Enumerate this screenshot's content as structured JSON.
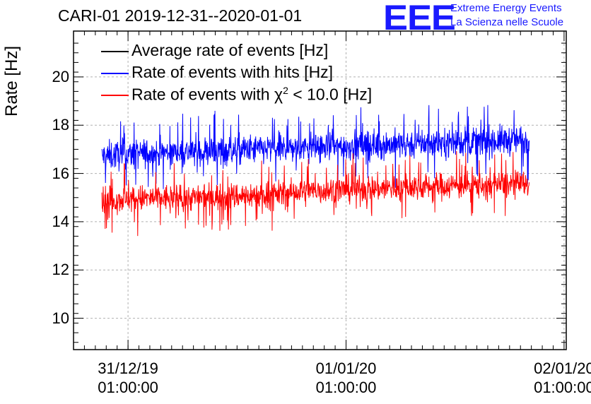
{
  "header": {
    "title": "CARI-01 2019-12-31--2020-01-01",
    "logo_mark": "EEE",
    "logo_line1": "Extreme Energy Events",
    "logo_line2": "La Scienza nelle Scuole"
  },
  "colors": {
    "average": "#000000",
    "hits": "#0000ff",
    "chi2": "#ff0000",
    "grid": "#b0b0b0"
  },
  "chart_data": {
    "type": "line",
    "ylabel": "Rate [Hz]",
    "xlabel": "",
    "ylim": [
      8.7,
      21.9
    ],
    "y_ticks": [
      10,
      12,
      14,
      16,
      18,
      20
    ],
    "xlim": [
      -0.25,
      2.01
    ],
    "x_ticks": [
      {
        "value": 0,
        "line1": "31/12/19",
        "line2": "01:00:00"
      },
      {
        "value": 1,
        "line1": "01/01/20",
        "line2": "01:00:00"
      },
      {
        "value": 2,
        "line1": "02/01/20",
        "line2": "01:00:00"
      }
    ],
    "x_units": "days since 31/12/19 01:00:00",
    "data_range": [
      -0.12,
      1.84
    ],
    "grid": true,
    "legend_position": "top-left",
    "series": [
      {
        "name": "Average rate of events [Hz]",
        "color": "#000000",
        "x": [
          -0.12,
          1.84
        ],
        "values": [
          16.9,
          17.3
        ]
      },
      {
        "name": "Rate of events with hits [Hz]",
        "color": "#0000ff",
        "x": [
          -0.12,
          0.0,
          0.3,
          0.6,
          0.9,
          1.2,
          1.5,
          1.84
        ],
        "values": [
          16.7,
          16.8,
          16.9,
          17.0,
          17.1,
          17.2,
          17.3,
          17.4
        ],
        "noise_amplitude": 0.55
      },
      {
        "name": "Rate of events with χ² < 10.0 [Hz]",
        "color": "#ff0000",
        "x": [
          -0.12,
          0.0,
          0.3,
          0.6,
          0.9,
          1.2,
          1.5,
          1.84
        ],
        "values": [
          14.9,
          14.95,
          15.0,
          15.1,
          15.3,
          15.4,
          15.5,
          15.55
        ],
        "noise_amplitude": 0.5
      }
    ],
    "legend": [
      {
        "name": "Average rate of events [Hz]"
      },
      {
        "name": "Rate of events with hits [Hz]"
      },
      {
        "name_main": "Rate of events with χ",
        "name_sup": "2",
        "name_tail": " < 10.0 [Hz]"
      }
    ]
  }
}
